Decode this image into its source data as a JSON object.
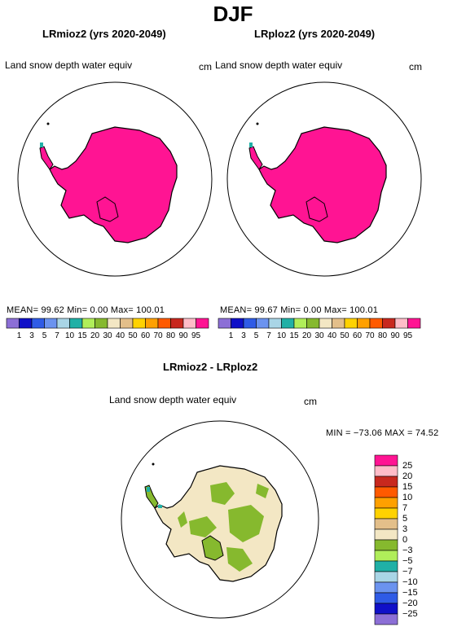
{
  "season": "DJF",
  "panels": [
    {
      "title": "LRmioz2 (yrs 2020-2049)",
      "variable": "Land snow depth water equiv",
      "unit": "cm",
      "stats": "MEAN=   99.62   Min=      0.00   Max=  100.01"
    },
    {
      "title": "LRploz2 (yrs 2020-2049)",
      "variable": "Land snow depth water equiv",
      "unit": "cm",
      "stats": "MEAN=   99.67   Min=      0.00   Max=  100.01"
    }
  ],
  "abs_colorbar": {
    "labels": [
      "1",
      "3",
      "5",
      "7",
      "10",
      "15",
      "20",
      "30",
      "40",
      "50",
      "60",
      "70",
      "80",
      "90",
      "95"
    ],
    "colors": [
      "#8c6fd6",
      "#1010c8",
      "#2f5be6",
      "#6b93ef",
      "#a9d5e6",
      "#20b0a6",
      "#b0ee5a",
      "#86b92e",
      "#f3e7c4",
      "#e3bf8a",
      "#ffd200",
      "#ffa000",
      "#ff5a00",
      "#c8281e",
      "#ffbcc8",
      "#ff1493"
    ]
  },
  "diff_panel": {
    "title": "LRmioz2 - LRploz2",
    "variable": "Land snow depth water equiv",
    "unit": "cm",
    "stats": "MIN = −73.06  MAX =  74.52"
  },
  "diff_colorbar": {
    "labels": [
      "25",
      "20",
      "15",
      "10",
      "7",
      "5",
      "3",
      "0",
      "−3",
      "−5",
      "−7",
      "−10",
      "−15",
      "−20",
      "−25"
    ],
    "colors": [
      "#ff1493",
      "#ffbcc8",
      "#c8281e",
      "#ff5a00",
      "#ffa000",
      "#ffd200",
      "#e3bf8a",
      "#f3e7c4",
      "#86b92e",
      "#b0ee5a",
      "#20b0a6",
      "#a9d5e6",
      "#6b93ef",
      "#2f5be6",
      "#1010c8",
      "#8c6fd6"
    ]
  },
  "colors": {
    "snow_full": "#ff1493",
    "diff_background": "#f3e7c4",
    "diff_negative": "#86b92e"
  }
}
